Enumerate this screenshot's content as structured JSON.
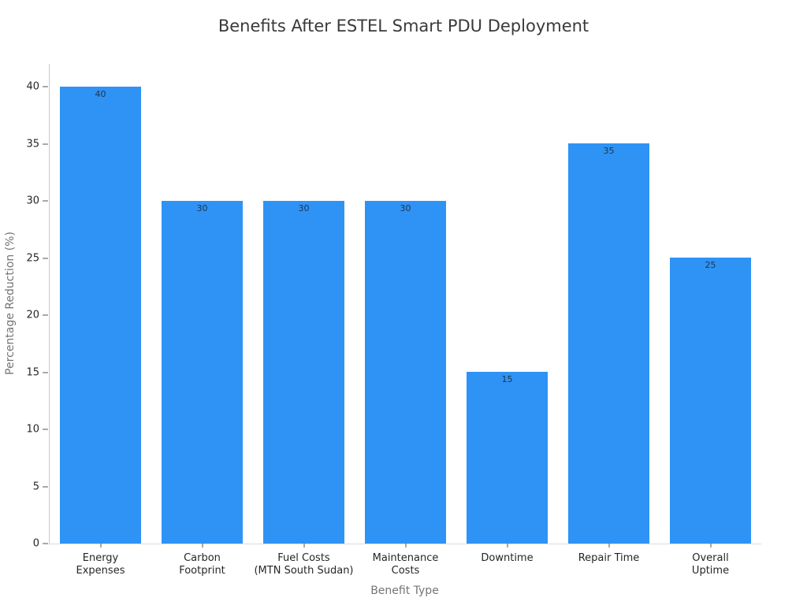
{
  "chart_data": {
    "type": "bar",
    "title": "Benefits After ESTEL Smart PDU Deployment",
    "xlabel": "Benefit Type",
    "ylabel": "Percentage Reduction (%)",
    "categories": [
      "Energy\nExpenses",
      "Carbon\nFootprint",
      "Fuel Costs\n(MTN South Sudan)",
      "Maintenance\nCosts",
      "Downtime",
      "Repair Time",
      "Overall\nUptime"
    ],
    "values": [
      40,
      30,
      30,
      30,
      15,
      35,
      25
    ],
    "bar_value_labels": [
      "40",
      "30",
      "30",
      "30",
      "15",
      "35",
      "25"
    ],
    "yticks": [
      0,
      5,
      10,
      15,
      20,
      25,
      30,
      35,
      40
    ],
    "ylim": [
      0,
      42
    ],
    "grid": false,
    "legend": "none",
    "colors": {
      "bar": "#2e93f5",
      "bar_value_label": "#223549",
      "tick_label": "#262626",
      "tick_mark": "#555555",
      "axis_title": "#757575",
      "chart_title": "#3a3a3a"
    }
  }
}
